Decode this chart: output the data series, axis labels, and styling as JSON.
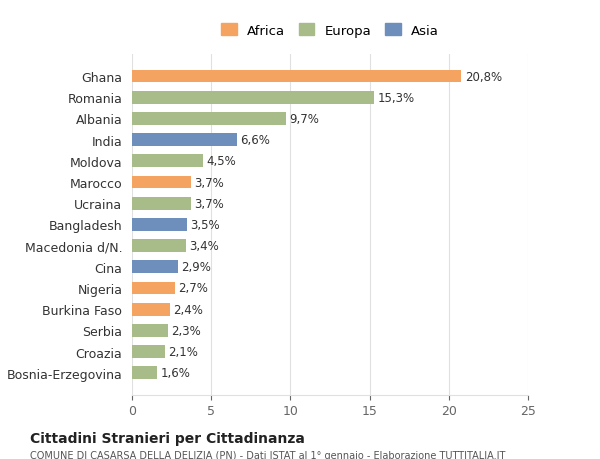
{
  "countries": [
    "Ghana",
    "Romania",
    "Albania",
    "India",
    "Moldova",
    "Marocco",
    "Ucraina",
    "Bangladesh",
    "Macedonia d/N.",
    "Cina",
    "Nigeria",
    "Burkina Faso",
    "Serbia",
    "Croazia",
    "Bosnia-Erzegovina"
  ],
  "values": [
    20.8,
    15.3,
    9.7,
    6.6,
    4.5,
    3.7,
    3.7,
    3.5,
    3.4,
    2.9,
    2.7,
    2.4,
    2.3,
    2.1,
    1.6
  ],
  "continents": [
    "Africa",
    "Europa",
    "Europa",
    "Asia",
    "Europa",
    "Africa",
    "Europa",
    "Asia",
    "Europa",
    "Asia",
    "Africa",
    "Africa",
    "Europa",
    "Europa",
    "Europa"
  ],
  "colors": {
    "Africa": "#F4A460",
    "Europa": "#A8BC8A",
    "Asia": "#6E8EBB"
  },
  "legend_labels": [
    "Africa",
    "Europa",
    "Asia"
  ],
  "legend_colors": [
    "#F4A460",
    "#A8BC8A",
    "#6E8EBB"
  ],
  "xlim": [
    0,
    25
  ],
  "xticks": [
    0,
    5,
    10,
    15,
    20,
    25
  ],
  "title": "Cittadini Stranieri per Cittadinanza",
  "subtitle": "COMUNE DI CASARSA DELLA DELIZIA (PN) - Dati ISTAT al 1° gennaio - Elaborazione TUTTITALIA.IT",
  "bg_color": "#ffffff",
  "plot_bg_color": "#ffffff",
  "grid_color": "#e0e0e0",
  "bar_height": 0.6,
  "value_label_fontsize": 8.5,
  "ytick_fontsize": 9,
  "xtick_fontsize": 9
}
